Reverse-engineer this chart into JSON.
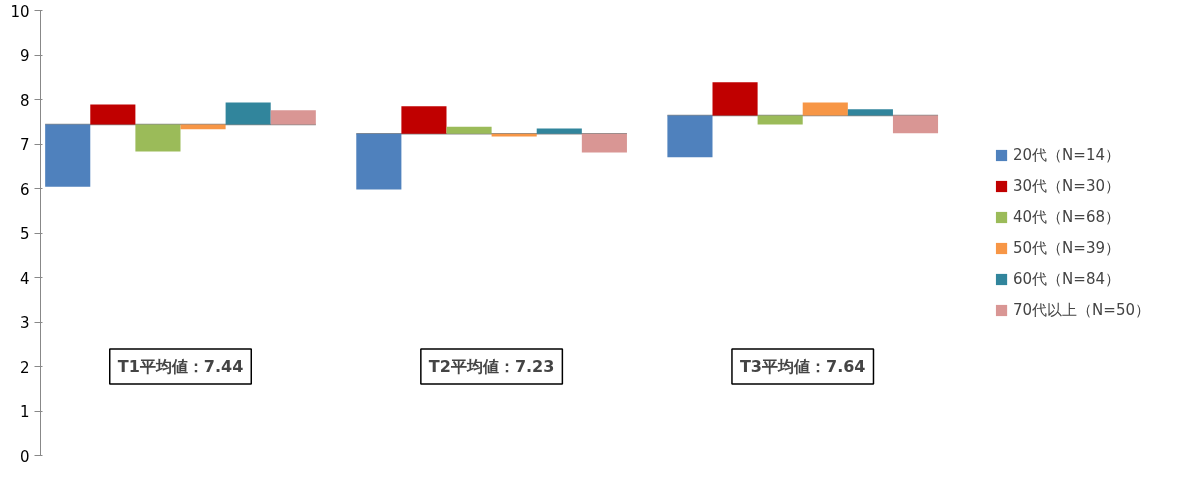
{
  "chart_data": {
    "type": "bar",
    "categories": [
      null,
      null,
      null
    ],
    "series": [
      {
        "name": "20代（N=14）",
        "color": "#4f81bd",
        "base": [
          7.44,
          7.23,
          7.64
        ],
        "values": [
          -1.4,
          -1.25,
          -0.94
        ]
      },
      {
        "name": "30代（N=30）",
        "color": "#c00000",
        "base": [
          7.44,
          7.23,
          7.64
        ],
        "values": [
          0.45,
          0.62,
          0.75
        ]
      },
      {
        "name": "40代（N=68）",
        "color": "#9bbb59",
        "base": [
          7.44,
          7.23,
          7.64
        ],
        "values": [
          -0.61,
          0.16,
          -0.2
        ]
      },
      {
        "name": "50代（N=39）",
        "color": "#f79646",
        "base": [
          7.44,
          7.23,
          7.64
        ],
        "values": [
          -0.11,
          -0.06,
          0.29
        ]
      },
      {
        "name": "60代（N=84）",
        "color": "#31859c",
        "base": [
          7.44,
          7.23,
          7.64
        ],
        "values": [
          0.49,
          0.12,
          0.14
        ]
      },
      {
        "name": "70代以上（N=50）",
        "color": "#d99694",
        "base": [
          7.44,
          7.23,
          7.64
        ],
        "values": [
          0.32,
          -0.42,
          -0.4
        ]
      }
    ],
    "ref_lines": [
      {
        "axis": "y",
        "value": 7.44,
        "color": "#888888"
      },
      {
        "axis": "y",
        "value": 7.23,
        "color": "#888888"
      },
      {
        "axis": "y",
        "value": 7.64,
        "color": "#888888"
      }
    ],
    "ylim": [
      0,
      10
    ],
    "yticks": [
      0,
      1,
      2,
      3,
      4,
      5,
      6,
      7,
      8,
      9,
      10
    ],
    "grid": false,
    "legend": "right",
    "annotations": [
      "T1平均値：7.44",
      "T2平均値：7.23",
      "T3平均値：7.64"
    ]
  }
}
